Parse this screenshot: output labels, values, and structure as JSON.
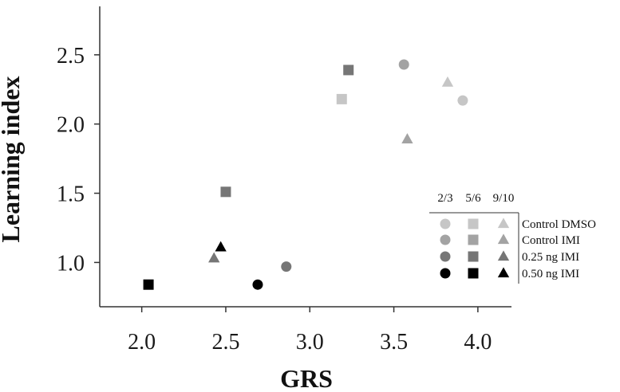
{
  "chart_data": {
    "type": "scatter",
    "xlabel": "GRS",
    "ylabel": "Learning index",
    "xlim": [
      1.75,
      4.2
    ],
    "ylim": [
      0.68,
      2.85
    ],
    "xticks": [
      "2.0",
      "2.5",
      "3.0",
      "3.5",
      "4.0"
    ],
    "xtick_values": [
      2.0,
      2.5,
      3.0,
      3.5,
      4.0
    ],
    "yticks": [
      "1.0",
      "1.5",
      "2.0",
      "2.5"
    ],
    "ytick_values": [
      1.0,
      1.5,
      2.0,
      2.5
    ],
    "grid": false,
    "legend_position": "center-right",
    "legend_columns": [
      "2/3",
      "5/6",
      "9/10"
    ],
    "legend_marker_shapes": [
      "circle",
      "square",
      "triangle"
    ],
    "groups": [
      {
        "name": "Control DMSO",
        "color": "#c6c6c6"
      },
      {
        "name": "Control IMI",
        "color": "#a3a3a3"
      },
      {
        "name": "0.25 ng IMI",
        "color": "#767676"
      },
      {
        "name": "0.50 ng IMI",
        "color": "#000000"
      }
    ],
    "points": [
      {
        "group": "Control DMSO",
        "column": "2/3",
        "shape": "circle",
        "x": 3.91,
        "y": 2.17
      },
      {
        "group": "Control DMSO",
        "column": "5/6",
        "shape": "square",
        "x": 3.19,
        "y": 2.18
      },
      {
        "group": "Control DMSO",
        "column": "9/10",
        "shape": "triangle",
        "x": 3.82,
        "y": 2.3
      },
      {
        "group": "Control IMI",
        "column": "2/3",
        "shape": "circle",
        "x": 3.56,
        "y": 2.43
      },
      {
        "group": "Control IMI",
        "column": "9/10",
        "shape": "triangle",
        "x": 3.58,
        "y": 1.89
      },
      {
        "group": "0.25 ng IMI",
        "column": "5/6",
        "shape": "square",
        "x": 3.23,
        "y": 2.39
      },
      {
        "group": "0.25 ng IMI",
        "column": "5/6",
        "shape": "square",
        "x": 2.5,
        "y": 1.51
      },
      {
        "group": "0.25 ng IMI",
        "column": "2/3",
        "shape": "circle",
        "x": 2.86,
        "y": 0.97
      },
      {
        "group": "0.25 ng IMI",
        "column": "9/10",
        "shape": "triangle",
        "x": 2.43,
        "y": 1.03
      },
      {
        "group": "0.50 ng IMI",
        "column": "5/6",
        "shape": "square",
        "x": 2.04,
        "y": 0.84
      },
      {
        "group": "0.50 ng IMI",
        "column": "2/3",
        "shape": "circle",
        "x": 2.69,
        "y": 0.84
      },
      {
        "group": "0.50 ng IMI",
        "column": "9/10",
        "shape": "triangle",
        "x": 2.47,
        "y": 1.11
      }
    ]
  }
}
